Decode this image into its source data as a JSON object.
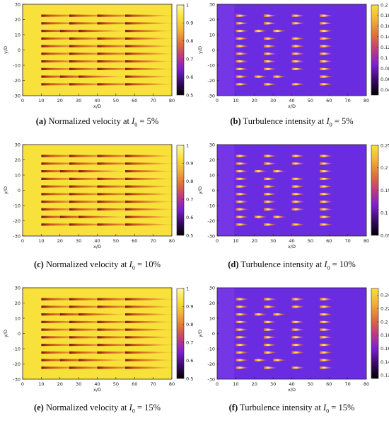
{
  "figure": {
    "panels": [
      {
        "id": "a",
        "kind": "velocity",
        "caption_label": "(a)",
        "caption_text": "Normalized velocity at",
        "caption_var": "I",
        "caption_sub": "0",
        "caption_value": "= 5%",
        "chart_data": {
          "type": "heatmap",
          "xlabel": "x/D",
          "ylabel": "y/D",
          "xlim": [
            0,
            80
          ],
          "ylim": [
            -30,
            30
          ],
          "xticks": [
            "0",
            "10",
            "20",
            "30",
            "40",
            "50",
            "60",
            "70",
            "80"
          ],
          "yticks": [
            "30",
            "20",
            "10",
            "0",
            "-10",
            "-20",
            "-30"
          ],
          "colorbar": {
            "min": 0.5,
            "max": 1.0,
            "ticks": [
              "1",
              "0.9",
              "0.8",
              "0.7",
              "0.6",
              "0.5"
            ]
          },
          "turbine_columns_x": [
            10,
            25,
            40,
            55
          ],
          "turbine_rows_y": [
            22.5,
            17.5,
            12.5,
            7.5,
            2.5,
            -2.5,
            -7.5,
            -12.5,
            -17.5,
            -22.5
          ],
          "staggered_positions_x": [
            20,
            45
          ]
        }
      },
      {
        "id": "b",
        "kind": "turbulence",
        "caption_label": "(b)",
        "caption_text": "Turbulence intensity at",
        "caption_var": "I",
        "caption_sub": "0",
        "caption_value": "= 5%",
        "chart_data": {
          "type": "heatmap",
          "xlabel": "x/D",
          "ylabel": "y/D",
          "xlim": [
            0,
            80
          ],
          "ylim": [
            -30,
            30
          ],
          "xticks": [
            "0",
            "10",
            "20",
            "30",
            "40",
            "50",
            "60",
            "70",
            "80"
          ],
          "yticks": [
            "30",
            "20",
            "10",
            "0",
            "-10",
            "-20",
            "-30"
          ],
          "colorbar": {
            "min": 0.03,
            "max": 0.2,
            "ticks": [
              "0.2",
              "0.18",
              "0.16",
              "0.14",
              "0.12",
              "0.1",
              "0.08",
              "0.06",
              "0.04"
            ]
          },
          "turbine_columns_x": [
            10,
            25,
            40,
            55
          ],
          "turbine_rows_y": [
            22.5,
            17.5,
            12.5,
            7.5,
            2.5,
            -2.5,
            -7.5,
            -12.5,
            -17.5,
            -22.5
          ],
          "staggered_positions_x": [
            20,
            45
          ]
        }
      },
      {
        "id": "c",
        "kind": "velocity",
        "caption_label": "(c)",
        "caption_text": "Normalized velocity at",
        "caption_var": "I",
        "caption_sub": "0",
        "caption_value": "= 10%",
        "chart_data": {
          "type": "heatmap",
          "xlabel": "x/D",
          "ylabel": "y/D",
          "xlim": [
            0,
            80
          ],
          "ylim": [
            -30,
            30
          ],
          "xticks": [
            "0",
            "10",
            "20",
            "30",
            "40",
            "50",
            "60",
            "70",
            "80"
          ],
          "yticks": [
            "30",
            "20",
            "10",
            "0",
            "-10",
            "-20",
            "-30"
          ],
          "colorbar": {
            "min": 0.5,
            "max": 1.0,
            "ticks": [
              "1",
              "0.9",
              "0.8",
              "0.7",
              "0.6",
              "0.5"
            ]
          },
          "turbine_columns_x": [
            10,
            25,
            40,
            55
          ],
          "turbine_rows_y": [
            22.5,
            17.5,
            12.5,
            7.5,
            2.5,
            -2.5,
            -7.5,
            -12.5,
            -17.5,
            -22.5
          ],
          "staggered_positions_x": [
            20,
            45
          ]
        }
      },
      {
        "id": "d",
        "kind": "turbulence",
        "caption_label": "(d)",
        "caption_text": "Turbulence intensity at",
        "caption_var": "I",
        "caption_sub": "0",
        "caption_value": "= 10%",
        "chart_data": {
          "type": "heatmap",
          "xlabel": "x/D",
          "ylabel": "y/D",
          "xlim": [
            0,
            80
          ],
          "ylim": [
            -30,
            30
          ],
          "xticks": [
            "0",
            "10",
            "20",
            "30",
            "40",
            "50",
            "60",
            "70",
            "80"
          ],
          "yticks": [
            "30",
            "20",
            "10",
            "0",
            "-10",
            "-20",
            "-30"
          ],
          "colorbar": {
            "min": 0.05,
            "max": 0.25,
            "ticks": [
              "0.25",
              "0.2",
              "0.15",
              "0.1",
              "0.05"
            ]
          },
          "turbine_columns_x": [
            10,
            25,
            40,
            55
          ],
          "turbine_rows_y": [
            22.5,
            17.5,
            12.5,
            7.5,
            2.5,
            -2.5,
            -7.5,
            -12.5,
            -17.5,
            -22.5
          ],
          "staggered_positions_x": [
            20,
            45
          ]
        }
      },
      {
        "id": "e",
        "kind": "velocity",
        "caption_label": "(e)",
        "caption_text": "Normalized velocity at",
        "caption_var": "I",
        "caption_sub": "0",
        "caption_value": "= 15%",
        "chart_data": {
          "type": "heatmap",
          "xlabel": "x/D",
          "ylabel": "y/D",
          "xlim": [
            0,
            80
          ],
          "ylim": [
            -30,
            30
          ],
          "xticks": [
            "0",
            "10",
            "20",
            "30",
            "40",
            "50",
            "60",
            "70",
            "80"
          ],
          "yticks": [
            "30",
            "20",
            "10",
            "0",
            "-10",
            "-20",
            "-30"
          ],
          "colorbar": {
            "min": 0.5,
            "max": 1.0,
            "ticks": [
              "1",
              "0.9",
              "0.8",
              "0.7",
              "0.6",
              "0.5"
            ]
          },
          "turbine_columns_x": [
            10,
            25,
            40,
            55
          ],
          "turbine_rows_y": [
            22.5,
            17.5,
            12.5,
            7.5,
            2.5,
            -2.5,
            -7.5,
            -12.5,
            -17.5,
            -22.5
          ],
          "staggered_positions_x": [
            20,
            45
          ]
        }
      },
      {
        "id": "f",
        "kind": "turbulence",
        "caption_label": "(f)",
        "caption_text": "Turbulence intensity at",
        "caption_var": "I",
        "caption_sub": "0",
        "caption_value": "= 15%",
        "chart_data": {
          "type": "heatmap",
          "xlabel": "x/D",
          "ylabel": "y/D",
          "xlim": [
            0,
            80
          ],
          "ylim": [
            -30,
            30
          ],
          "xticks": [
            "0",
            "10",
            "20",
            "30",
            "40",
            "50",
            "60",
            "70",
            "80"
          ],
          "yticks": [
            "30",
            "20",
            "10",
            "0",
            "-10",
            "-20",
            "-30"
          ],
          "colorbar": {
            "min": 0.115,
            "max": 0.25,
            "ticks": [
              "0.24",
              "0.22",
              "0.2",
              "0.18",
              "0.16",
              "0.14",
              "0.12"
            ]
          },
          "turbine_columns_x": [
            10,
            25,
            40,
            55
          ],
          "turbine_rows_y": [
            22.5,
            17.5,
            12.5,
            7.5,
            2.5,
            -2.5,
            -7.5,
            -12.5,
            -17.5,
            -22.5
          ],
          "staggered_positions_x": [
            20,
            45
          ]
        }
      }
    ],
    "colors": {
      "velocity_background": "#f7e13a",
      "velocity_wake": "#e59030",
      "velocity_core": "#7a1a10",
      "turbulence_background": "#6a2ce0",
      "turbulence_wake": "#c04090",
      "turbulence_hot": "#ffe870",
      "axis": "#222222"
    }
  }
}
